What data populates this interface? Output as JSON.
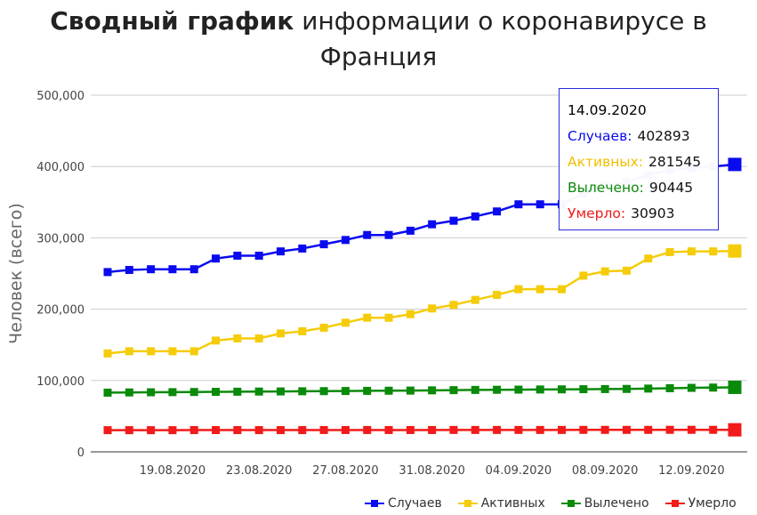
{
  "title": {
    "bold": "Сводный график",
    "rest": " информации о коронавирусе в Франция"
  },
  "colors": {
    "cases": "#0a0af0",
    "active": "#f5cc0a",
    "recovered": "#0a8a0a",
    "deaths": "#f21a1a"
  },
  "tooltip": {
    "date": "14.09.2020",
    "rows": [
      {
        "label": "Случаев:",
        "value": "402893",
        "color": "#0a0af0"
      },
      {
        "label": "Активных:",
        "value": "281545",
        "color": "#f5cc0a"
      },
      {
        "label": "Вылечено:",
        "value": "90445",
        "color": "#0a8a0a"
      },
      {
        "label": "Умерло:",
        "value": "30903",
        "color": "#f21a1a"
      }
    ]
  },
  "chart_data": {
    "type": "line",
    "ylabel": "Человек (всего)",
    "ylim": [
      0,
      500000
    ],
    "yticks": [
      "0",
      "100,000",
      "200,000",
      "300,000",
      "400,000",
      "500,000"
    ],
    "ytick_values": [
      0,
      100000,
      200000,
      300000,
      400000,
      500000
    ],
    "x": [
      "16.08.2020",
      "17.08.2020",
      "18.08.2020",
      "19.08.2020",
      "20.08.2020",
      "21.08.2020",
      "22.08.2020",
      "23.08.2020",
      "24.08.2020",
      "25.08.2020",
      "26.08.2020",
      "27.08.2020",
      "28.08.2020",
      "29.08.2020",
      "30.08.2020",
      "31.08.2020",
      "01.09.2020",
      "02.09.2020",
      "03.09.2020",
      "04.09.2020",
      "05.09.2020",
      "06.09.2020",
      "07.09.2020",
      "08.09.2020",
      "09.09.2020",
      "10.09.2020",
      "11.09.2020",
      "12.09.2020",
      "13.09.2020",
      "14.09.2020"
    ],
    "xtick_labels": [
      "19.08.2020",
      "23.08.2020",
      "27.08.2020",
      "31.08.2020",
      "04.09.2020",
      "08.09.2020",
      "12.09.2020"
    ],
    "legend_position": "bottom-right",
    "grid": true,
    "series": [
      {
        "name": "Случаев",
        "key": "cases",
        "values": [
          252000,
          255000,
          256000,
          256000,
          256000,
          271000,
          275000,
          275000,
          281000,
          285000,
          291000,
          297000,
          304000,
          304000,
          310000,
          319000,
          324000,
          330000,
          337000,
          347000,
          347000,
          347000,
          362000,
          373000,
          378000,
          388000,
          395000,
          398000,
          400000,
          402893
        ]
      },
      {
        "name": "Активных",
        "key": "active",
        "values": [
          138000,
          141000,
          141000,
          141000,
          141000,
          156000,
          159000,
          159000,
          166000,
          169000,
          174000,
          181000,
          188000,
          188000,
          193000,
          201000,
          206000,
          213000,
          220000,
          228000,
          228000,
          228000,
          247000,
          253000,
          254000,
          271000,
          280000,
          281000,
          281000,
          281545
        ]
      },
      {
        "name": "Вылечено",
        "key": "recovered",
        "values": [
          83000,
          83300,
          83500,
          83700,
          83900,
          84100,
          84300,
          84500,
          84700,
          84900,
          85100,
          85300,
          85500,
          85700,
          85900,
          86200,
          86500,
          86800,
          87000,
          87200,
          87400,
          87600,
          87800,
          88000,
          88200,
          88700,
          89200,
          89700,
          90100,
          90445
        ]
      },
      {
        "name": "Умерло",
        "key": "deaths",
        "values": [
          30400,
          30400,
          30400,
          30400,
          30500,
          30500,
          30500,
          30500,
          30500,
          30500,
          30600,
          30600,
          30600,
          30600,
          30600,
          30600,
          30700,
          30700,
          30700,
          30700,
          30700,
          30700,
          30800,
          30800,
          30800,
          30800,
          30900,
          30900,
          30900,
          30903
        ]
      }
    ]
  },
  "legend": [
    {
      "label": "Случаев",
      "color": "#0a0af0"
    },
    {
      "label": "Активных",
      "color": "#f5cc0a"
    },
    {
      "label": "Вылечено",
      "color": "#0a8a0a"
    },
    {
      "label": "Умерло",
      "color": "#f21a1a"
    }
  ]
}
